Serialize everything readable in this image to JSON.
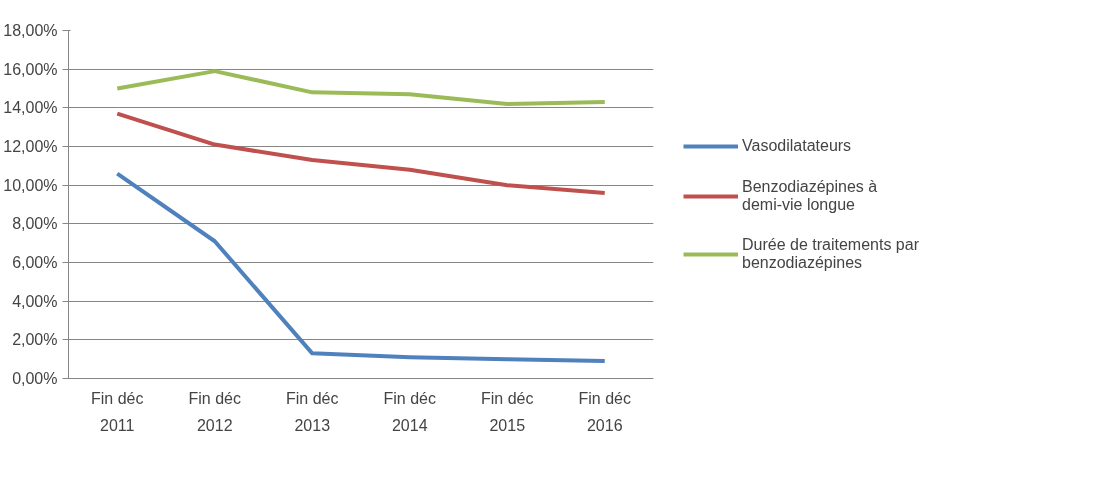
{
  "chart_data": {
    "type": "line",
    "categories": [
      "Fin déc 2011",
      "Fin déc 2012",
      "Fin déc 2013",
      "Fin déc 2014",
      "Fin déc 2015",
      "Fin déc 2016"
    ],
    "series": [
      {
        "name": "Vasodilatateurs",
        "color": "#4f81bd",
        "values": [
          10.6,
          7.1,
          1.3,
          1.1,
          1.0,
          0.9
        ]
      },
      {
        "name": "Benzodiazépines à demi-vie longue",
        "color": "#c0504d",
        "values": [
          13.7,
          12.1,
          11.3,
          10.8,
          10.0,
          9.6
        ]
      },
      {
        "name": "Durée de traitements par benzodiazépines",
        "color": "#9bbb59",
        "values": [
          15.0,
          15.9,
          14.8,
          14.7,
          14.2,
          14.3
        ]
      }
    ],
    "ylim": [
      0,
      18
    ],
    "yticks": [
      {
        "value": 0,
        "label": "0,00%"
      },
      {
        "value": 2,
        "label": "2,00%"
      },
      {
        "value": 4,
        "label": "4,00%"
      },
      {
        "value": 6,
        "label": "6,00%"
      },
      {
        "value": 8,
        "label": "8,00%"
      },
      {
        "value": 10,
        "label": "10,00%"
      },
      {
        "value": 12,
        "label": "12,00%"
      },
      {
        "value": 14,
        "label": "14,00%"
      },
      {
        "value": 16,
        "label": "16,00%"
      },
      {
        "value": 18,
        "label": "18,00%"
      }
    ],
    "grid": "y",
    "legend": "right",
    "marker": "none",
    "line_style": "solid"
  }
}
